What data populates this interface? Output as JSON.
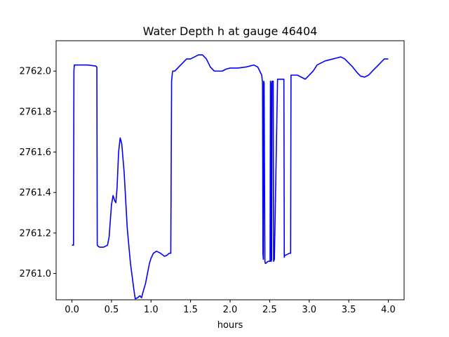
{
  "chart_data": {
    "type": "line",
    "title": "Water Depth h at gauge 46404",
    "xlabel": "hours",
    "ylabel": "",
    "xlim": [
      -0.2,
      4.2
    ],
    "ylim": [
      2760.87,
      2762.15
    ],
    "grid": false,
    "legend": "none",
    "xticks": [
      0.0,
      0.5,
      1.0,
      1.5,
      2.0,
      2.5,
      3.0,
      3.5,
      4.0
    ],
    "xtick_labels": [
      "0.0",
      "0.5",
      "1.0",
      "1.5",
      "2.0",
      "2.5",
      "3.0",
      "3.5",
      "4.0"
    ],
    "yticks": [
      2761.0,
      2761.2,
      2761.4,
      2761.6,
      2761.8,
      2762.0
    ],
    "ytick_labels": [
      "2761.0",
      "2761.2",
      "2761.4",
      "2761.6",
      "2761.8",
      "2762.0"
    ],
    "series": [
      {
        "color": "#0000ff",
        "x": [
          0.0,
          0.02,
          0.025,
          0.03,
          0.1,
          0.2,
          0.3,
          0.315,
          0.32,
          0.33,
          0.35,
          0.4,
          0.45,
          0.47,
          0.5,
          0.52,
          0.54,
          0.555,
          0.57,
          0.59,
          0.61,
          0.63,
          0.66,
          0.7,
          0.74,
          0.78,
          0.8,
          0.83,
          0.86,
          0.88,
          0.9,
          0.93,
          0.95,
          0.98,
          1.0,
          1.03,
          1.07,
          1.12,
          1.17,
          1.2,
          1.23,
          1.25,
          1.26,
          1.27,
          1.275,
          1.3,
          1.35,
          1.4,
          1.45,
          1.5,
          1.55,
          1.6,
          1.65,
          1.7,
          1.75,
          1.8,
          1.85,
          1.9,
          1.95,
          2.0,
          2.1,
          2.2,
          2.25,
          2.3,
          2.35,
          2.4,
          2.41,
          2.415,
          2.42,
          2.425,
          2.43,
          2.44,
          2.445,
          2.45,
          2.48,
          2.505,
          2.51,
          2.515,
          2.52,
          2.525,
          2.53,
          2.545,
          2.55,
          2.56,
          2.6,
          2.65,
          2.68,
          2.685,
          2.69,
          2.7,
          2.75,
          2.765,
          2.77,
          2.8,
          2.85,
          2.9,
          2.95,
          3.0,
          3.05,
          3.1,
          3.2,
          3.3,
          3.35,
          3.4,
          3.45,
          3.5,
          3.55,
          3.6,
          3.65,
          3.7,
          3.75,
          3.8,
          3.85,
          3.9,
          3.95,
          4.0
        ],
        "y": [
          2761.14,
          2761.14,
          2762.0,
          2762.03,
          2762.03,
          2762.03,
          2762.025,
          2762.02,
          2761.14,
          2761.135,
          2761.13,
          2761.13,
          2761.14,
          2761.18,
          2761.34,
          2761.385,
          2761.36,
          2761.35,
          2761.42,
          2761.6,
          2761.67,
          2761.64,
          2761.5,
          2761.22,
          2761.05,
          2760.93,
          2760.875,
          2760.88,
          2760.89,
          2760.88,
          2760.91,
          2760.95,
          2760.99,
          2761.05,
          2761.075,
          2761.1,
          2761.11,
          2761.1,
          2761.085,
          2761.09,
          2761.1,
          2761.1,
          2761.95,
          2761.99,
          2762.0,
          2762.0,
          2762.02,
          2762.04,
          2762.06,
          2762.06,
          2762.07,
          2762.08,
          2762.08,
          2762.06,
          2762.02,
          2762.0,
          2762.0,
          2762.0,
          2762.01,
          2762.015,
          2762.015,
          2762.02,
          2762.025,
          2762.03,
          2762.02,
          2761.98,
          2761.94,
          2761.1,
          2761.07,
          2761.95,
          2761.94,
          2761.06,
          2761.05,
          2761.05,
          2761.06,
          2761.06,
          2761.95,
          2761.94,
          2761.06,
          2761.07,
          2761.95,
          2761.95,
          2761.06,
          2761.07,
          2761.96,
          2761.96,
          2761.96,
          2761.08,
          2761.09,
          2761.09,
          2761.1,
          2761.1,
          2761.98,
          2761.98,
          2761.98,
          2761.97,
          2761.96,
          2761.98,
          2762.0,
          2762.03,
          2762.05,
          2762.06,
          2762.065,
          2762.07,
          2762.06,
          2762.04,
          2762.02,
          2761.995,
          2761.975,
          2761.97,
          2761.98,
          2762.0,
          2762.02,
          2762.04,
          2762.06,
          2762.06
        ]
      }
    ]
  }
}
